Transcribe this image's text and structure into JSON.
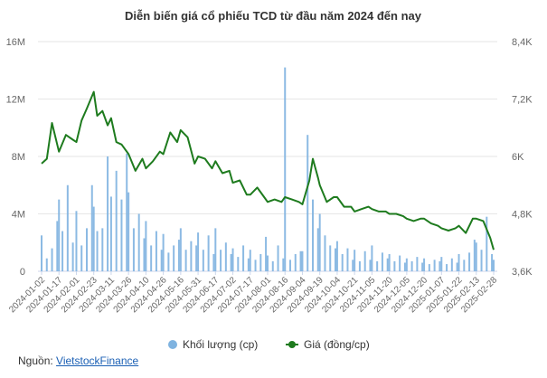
{
  "chart_data": {
    "type": "bar+line",
    "title": "Diễn biến giá cổ phiếu TCD từ đầu năm 2024 đến nay",
    "x_tick_labels": [
      "2024-01-02",
      "2024-01-17",
      "2024-02-01",
      "2024-02-23",
      "2024-03-11",
      "2024-03-26",
      "2024-04-10",
      "2024-04-26",
      "2024-05-16",
      "2024-05-31",
      "2024-06-17",
      "2024-07-02",
      "2024-07-17",
      "2024-08-01",
      "2024-08-16",
      "2024-09-04",
      "2024-09-19",
      "2024-10-04",
      "2024-10-21",
      "2024-11-05",
      "2024-11-20",
      "2024-12-05",
      "2024-12-20",
      "2025-01-07",
      "2025-01-22",
      "2025-02-13",
      "2025-02-28"
    ],
    "y_left": {
      "ticks": [
        "0",
        "4M",
        "8M",
        "12M",
        "16M"
      ],
      "range": [
        0,
        16000000
      ]
    },
    "y_right": {
      "ticks": [
        "3,6K",
        "4,8K",
        "6K",
        "7,2K",
        "8,4K"
      ],
      "range": [
        3600,
        8400
      ]
    },
    "series": [
      {
        "name": "Khối lượng (cp)",
        "kind": "bar",
        "color": "#7fb3e0",
        "x_index": [
          0,
          0.3,
          0.6,
          0.9,
          1.0,
          1.2,
          1.5,
          1.8,
          2.0,
          2.3,
          2.6,
          2.9,
          3.0,
          3.2,
          3.5,
          3.8,
          4.0,
          4.3,
          4.6,
          4.9,
          5.0,
          5.3,
          5.6,
          5.9,
          6.0,
          6.3,
          6.6,
          6.9,
          7.0,
          7.3,
          7.6,
          7.9,
          8.0,
          8.3,
          8.6,
          8.9,
          9.0,
          9.3,
          9.6,
          9.9,
          10.0,
          10.3,
          10.6,
          10.9,
          11.0,
          11.3,
          11.6,
          11.9,
          12.0,
          12.3,
          12.6,
          12.9,
          13.0,
          13.3,
          13.6,
          13.9,
          14.0,
          14.3,
          14.6,
          14.9,
          15.0,
          15.3,
          15.6,
          15.9,
          16.0,
          16.3,
          16.6,
          16.9,
          17.0,
          17.3,
          17.6,
          17.9,
          18.0,
          18.3,
          18.6,
          18.9,
          19.0,
          19.3,
          19.6,
          19.9,
          20.0,
          20.3,
          20.6,
          20.9,
          21.0,
          21.3,
          21.6,
          21.9,
          22.0,
          22.3,
          22.6,
          22.9,
          23.0,
          23.3,
          23.6,
          23.9,
          24.0,
          24.3,
          24.6,
          24.9,
          25.0,
          25.3,
          25.6,
          25.9,
          26.0
        ],
        "values": [
          2500000,
          900000,
          1600000,
          3500000,
          5000000,
          2800000,
          6000000,
          2000000,
          4200000,
          1800000,
          3000000,
          6000000,
          4500000,
          2800000,
          3000000,
          8000000,
          5200000,
          7000000,
          5000000,
          8200000,
          5500000,
          3000000,
          4000000,
          2300000,
          3500000,
          1800000,
          2800000,
          1500000,
          2600000,
          1300000,
          1800000,
          2200000,
          3000000,
          1500000,
          2100000,
          1800000,
          2700000,
          1500000,
          2500000,
          1200000,
          3000000,
          1500000,
          2000000,
          1200000,
          1600000,
          1000000,
          1800000,
          900000,
          1500000,
          800000,
          1200000,
          2400000,
          1100000,
          700000,
          1800000,
          900000,
          14200000,
          800000,
          1200000,
          1400000,
          1400000,
          9500000,
          5000000,
          3000000,
          4000000,
          2500000,
          1800000,
          1600000,
          2100000,
          1200000,
          1600000,
          800000,
          1500000,
          700000,
          1400000,
          800000,
          1800000,
          700000,
          1300000,
          900000,
          1200000,
          700000,
          1100000,
          600000,
          900000,
          700000,
          1000000,
          600000,
          900000,
          500000,
          800000,
          700000,
          1000000,
          500000,
          900000,
          600000,
          1200000,
          800000,
          1300000,
          2200000,
          2000000,
          1500000,
          3800000,
          1200000,
          800000
        ]
      },
      {
        "name": "Giá (đồng/cp)",
        "kind": "line",
        "color": "#1e7b1e",
        "x_index": [
          0,
          0.3,
          0.6,
          1.0,
          1.4,
          1.8,
          2.0,
          2.3,
          2.6,
          3.0,
          3.2,
          3.5,
          3.8,
          4.0,
          4.3,
          4.6,
          5.0,
          5.4,
          5.8,
          6.0,
          6.4,
          6.8,
          7.0,
          7.4,
          7.8,
          8.0,
          8.4,
          8.8,
          9.0,
          9.4,
          9.8,
          10.0,
          10.4,
          10.8,
          11.0,
          11.4,
          11.8,
          12.0,
          12.4,
          12.8,
          13.0,
          13.4,
          13.8,
          14.0,
          14.4,
          14.8,
          15.0,
          15.4,
          15.6,
          15.9,
          16.0,
          16.4,
          16.8,
          17.0,
          17.4,
          17.8,
          18.0,
          18.4,
          18.8,
          19.0,
          19.4,
          19.8,
          20.0,
          20.4,
          20.8,
          21.0,
          21.4,
          21.8,
          22.0,
          22.4,
          22.8,
          23.0,
          23.4,
          23.8,
          24.0,
          24.4,
          24.8,
          25.0,
          25.4,
          25.8,
          26.0
        ],
        "values": [
          5850,
          5950,
          6700,
          6100,
          6450,
          6350,
          6300,
          6750,
          7000,
          7350,
          6850,
          6950,
          6650,
          6800,
          6300,
          6250,
          6050,
          5700,
          5950,
          5750,
          5900,
          6100,
          6050,
          6500,
          6300,
          6550,
          6400,
          5850,
          6000,
          5950,
          5750,
          5900,
          5650,
          5700,
          5450,
          5500,
          5200,
          5200,
          5350,
          5150,
          5050,
          5100,
          5050,
          5150,
          5100,
          5050,
          5000,
          5500,
          5950,
          5550,
          5400,
          5050,
          5150,
          5150,
          4950,
          4950,
          4850,
          4900,
          4950,
          4900,
          4850,
          4850,
          4800,
          4800,
          4750,
          4700,
          4650,
          4700,
          4700,
          4600,
          4550,
          4500,
          4450,
          4500,
          4550,
          4400,
          4700,
          4700,
          4650,
          4300,
          4050
        ]
      }
    ],
    "legend": {
      "position": "bottom-center",
      "entries": [
        "Khối lượng (cp)",
        "Giá (đồng/cp)"
      ]
    },
    "grid": "horizontal"
  },
  "source": {
    "label": "Nguồn:",
    "link_text": "VietstockFinance"
  }
}
